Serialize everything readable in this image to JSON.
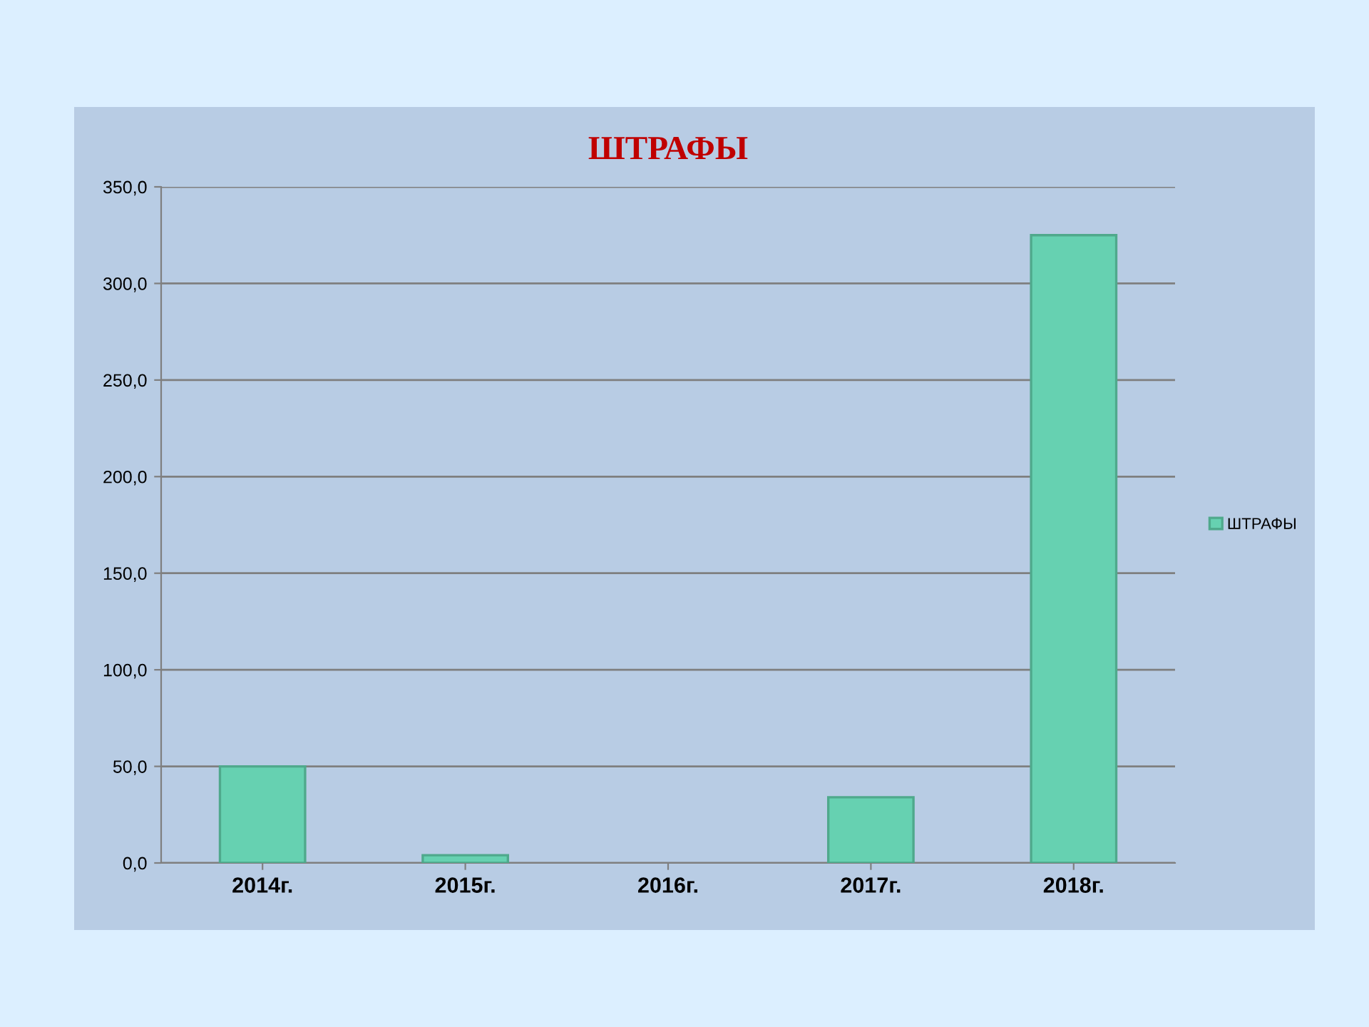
{
  "chart_data": {
    "type": "bar",
    "title": "ШТРАФЫ",
    "categories": [
      "2014г.",
      "2015г.",
      "2016г.",
      "2017г.",
      "2018г."
    ],
    "series": [
      {
        "name": "ШТРАФЫ",
        "color": "#66d1b1",
        "values": [
          50,
          4,
          0,
          34,
          325
        ]
      }
    ],
    "ylim": [
      0,
      350
    ],
    "yticks": [
      {
        "value": 0,
        "label": "0,0"
      },
      {
        "value": 50,
        "label": "50,0"
      },
      {
        "value": 100,
        "label": "100,0"
      },
      {
        "value": 150,
        "label": "150,0"
      },
      {
        "value": 200,
        "label": "200,0"
      },
      {
        "value": 250,
        "label": "250,0"
      },
      {
        "value": 300,
        "label": "300,0"
      },
      {
        "value": 350,
        "label": "350,0"
      }
    ],
    "grid": "y",
    "legend": "right"
  }
}
